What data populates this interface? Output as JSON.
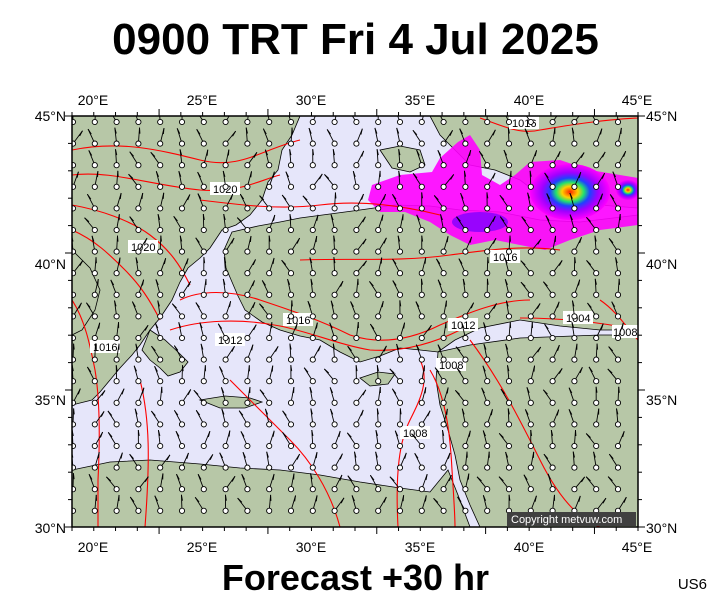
{
  "title": "0900 TRT Fri 4 Jul 2025",
  "footer": "Forecast +30 hr",
  "product_code": "US6",
  "copyright": "Copyright metvuw.com",
  "lon_ticks": [
    "20°E",
    "25°E",
    "30°E",
    "35°E",
    "40°E",
    "45°E"
  ],
  "lat_ticks": [
    "45°N",
    "40°N",
    "35°N",
    "30°N"
  ],
  "isobar_labels": [
    "1016",
    "1020",
    "1020",
    "1016",
    "1016",
    "1016",
    "1012",
    "1012",
    "1004",
    "1008",
    "1008",
    "1008"
  ],
  "colors": {
    "sea": "#e6e6fa",
    "land": "#b7c7a7",
    "isobar": "#ff0000",
    "precip_low": "#ff00ff",
    "precip_high": "#ff2000"
  }
}
